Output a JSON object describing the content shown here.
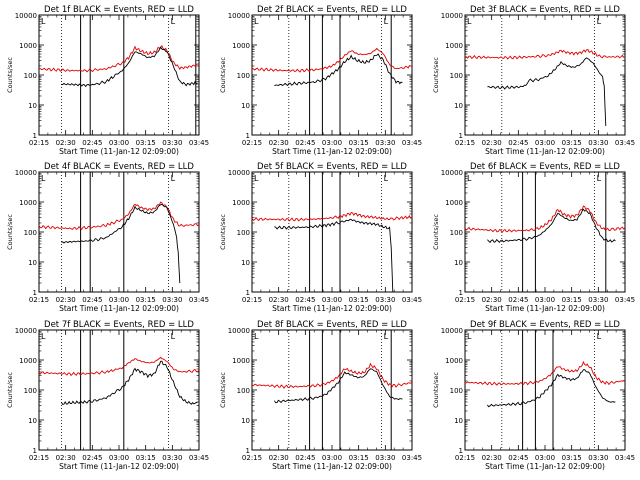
{
  "figure": {
    "x_ticks": [
      "02:15",
      "02:30",
      "02:45",
      "03:00",
      "03:15",
      "03:30",
      "03:45"
    ],
    "x_label": "Start Time (11-Jan-12 02:09:00)",
    "y_label": "Counts/sec",
    "y_ticks": [
      "1",
      "10",
      "100",
      "1000",
      "10000"
    ],
    "colors": {
      "events": "#000000",
      "lld": "#e00000"
    },
    "corner_marks": [
      "L",
      "L"
    ]
  },
  "chart_data": [
    {
      "type": "line",
      "title": "Det 1f BLACK = Events, RED = LLD",
      "xlim_minutes": [
        0,
        100
      ],
      "ylim": [
        1,
        10000
      ],
      "y_scale": "log",
      "solid_markers": [
        26,
        32,
        53,
        98
      ],
      "dotted_markers": [
        14,
        81
      ],
      "series": [
        {
          "name": "Events",
          "color": "#000000",
          "x": [
            14,
            22,
            30,
            36,
            42,
            46,
            52,
            56,
            60,
            64,
            68,
            72,
            76,
            80,
            84,
            88,
            92,
            96,
            99
          ],
          "y": [
            50,
            48,
            45,
            50,
            60,
            85,
            140,
            250,
            600,
            500,
            380,
            420,
            800,
            600,
            200,
            60,
            48,
            52,
            55
          ]
        },
        {
          "name": "LLD",
          "color": "#e00000",
          "x": [
            0,
            10,
            20,
            30,
            36,
            42,
            46,
            52,
            56,
            60,
            64,
            68,
            72,
            76,
            80,
            84,
            88,
            92,
            96,
            100
          ],
          "y": [
            160,
            150,
            140,
            140,
            150,
            160,
            190,
            250,
            380,
            800,
            620,
            520,
            560,
            900,
            650,
            260,
            170,
            180,
            200,
            230
          ]
        }
      ]
    },
    {
      "type": "line",
      "title": "Det 2f BLACK = Events, RED = LLD",
      "xlim_minutes": [
        0,
        100
      ],
      "ylim": [
        1,
        10000
      ],
      "y_scale": "log",
      "solid_markers": [
        36,
        44,
        55,
        87
      ],
      "dotted_markers": [
        23,
        81
      ],
      "series": [
        {
          "name": "Events",
          "color": "#000000",
          "x": [
            14,
            24,
            34,
            40,
            46,
            50,
            54,
            58,
            62,
            66,
            70,
            74,
            78,
            82,
            86,
            90,
            94
          ],
          "y": [
            45,
            50,
            55,
            60,
            75,
            110,
            160,
            280,
            400,
            300,
            260,
            300,
            500,
            320,
            110,
            60,
            55
          ]
        },
        {
          "name": "LLD",
          "color": "#e00000",
          "x": [
            0,
            10,
            20,
            30,
            40,
            46,
            50,
            54,
            58,
            62,
            66,
            70,
            74,
            78,
            82,
            86,
            90,
            96,
            100
          ],
          "y": [
            160,
            150,
            140,
            140,
            150,
            170,
            200,
            280,
            450,
            650,
            500,
            480,
            520,
            750,
            520,
            220,
            160,
            180,
            200
          ]
        }
      ]
    },
    {
      "type": "line",
      "title": "Det 3f BLACK = Events, RED = LLD",
      "xlim_minutes": [
        0,
        100
      ],
      "ylim": [
        1,
        10000
      ],
      "y_scale": "log",
      "solid_markers": [],
      "dotted_markers": [
        23,
        81
      ],
      "series": [
        {
          "name": "Events",
          "color": "#000000",
          "x": [
            14,
            24,
            34,
            38,
            40,
            46,
            52,
            56,
            60,
            64,
            68,
            72,
            76,
            80,
            84,
            86,
            87,
            88
          ],
          "y": [
            40,
            38,
            40,
            45,
            65,
            70,
            95,
            150,
            260,
            200,
            180,
            220,
            380,
            250,
            120,
            80,
            40,
            2
          ]
        },
        {
          "name": "LLD",
          "color": "#e00000",
          "x": [
            0,
            10,
            20,
            30,
            40,
            46,
            52,
            56,
            60,
            64,
            68,
            72,
            76,
            80,
            84,
            90,
            100
          ],
          "y": [
            400,
            390,
            380,
            380,
            400,
            420,
            450,
            520,
            650,
            560,
            520,
            550,
            680,
            550,
            420,
            400,
            410
          ]
        }
      ]
    },
    {
      "type": "line",
      "title": "Det 4f BLACK = Events, RED = LLD",
      "xlim_minutes": [
        0,
        100
      ],
      "ylim": [
        1,
        10000
      ],
      "y_scale": "log",
      "solid_markers": [
        26,
        32,
        53
      ],
      "dotted_markers": [
        14,
        81
      ],
      "series": [
        {
          "name": "Events",
          "color": "#000000",
          "x": [
            14,
            22,
            30,
            36,
            42,
            46,
            52,
            56,
            60,
            64,
            68,
            72,
            76,
            80,
            84,
            86,
            87,
            88
          ],
          "y": [
            45,
            48,
            50,
            55,
            65,
            90,
            150,
            280,
            650,
            520,
            420,
            460,
            850,
            650,
            180,
            60,
            20,
            2
          ]
        },
        {
          "name": "LLD",
          "color": "#e00000",
          "x": [
            0,
            10,
            20,
            30,
            36,
            42,
            46,
            52,
            56,
            60,
            64,
            68,
            72,
            76,
            80,
            84,
            88,
            94,
            100
          ],
          "y": [
            150,
            140,
            130,
            140,
            150,
            170,
            200,
            260,
            400,
            850,
            640,
            560,
            600,
            950,
            680,
            260,
            160,
            170,
            180
          ]
        }
      ]
    },
    {
      "type": "line",
      "title": "Det 5f BLACK = Events, RED = LLD",
      "xlim_minutes": [
        0,
        100
      ],
      "ylim": [
        1,
        10000
      ],
      "y_scale": "log",
      "solid_markers": [
        36,
        44,
        55
      ],
      "dotted_markers": [
        23,
        81
      ],
      "series": [
        {
          "name": "Events",
          "color": "#000000",
          "x": [
            14,
            24,
            34,
            44,
            52,
            58,
            62,
            66,
            70,
            74,
            78,
            82,
            86,
            87,
            88
          ],
          "y": [
            140,
            140,
            145,
            160,
            190,
            230,
            260,
            220,
            200,
            190,
            180,
            150,
            130,
            30,
            1
          ]
        },
        {
          "name": "LLD",
          "color": "#e00000",
          "x": [
            0,
            10,
            20,
            30,
            40,
            48,
            54,
            58,
            62,
            66,
            70,
            74,
            78,
            82,
            86,
            92,
            100
          ],
          "y": [
            270,
            265,
            260,
            260,
            270,
            290,
            320,
            360,
            420,
            380,
            330,
            320,
            300,
            280,
            270,
            290,
            320
          ]
        }
      ]
    },
    {
      "type": "line",
      "title": "Det 6f BLACK = Events, RED = LLD",
      "xlim_minutes": [
        0,
        100
      ],
      "ylim": [
        1,
        10000
      ],
      "y_scale": "log",
      "solid_markers": [
        36,
        44,
        88
      ],
      "dotted_markers": [
        23,
        81
      ],
      "series": [
        {
          "name": "Events",
          "color": "#000000",
          "x": [
            14,
            24,
            34,
            40,
            46,
            50,
            54,
            58,
            62,
            66,
            70,
            74,
            78,
            82,
            86,
            90,
            94
          ],
          "y": [
            50,
            50,
            55,
            60,
            75,
            110,
            180,
            420,
            300,
            240,
            260,
            560,
            420,
            140,
            60,
            50,
            50
          ]
        },
        {
          "name": "LLD",
          "color": "#e00000",
          "x": [
            0,
            10,
            20,
            30,
            40,
            46,
            50,
            54,
            58,
            62,
            66,
            70,
            74,
            78,
            82,
            86,
            90,
            96,
            100
          ],
          "y": [
            130,
            120,
            110,
            110,
            115,
            130,
            170,
            260,
            560,
            380,
            330,
            360,
            700,
            520,
            200,
            130,
            120,
            130,
            140
          ]
        }
      ]
    },
    {
      "type": "line",
      "title": "Det 7f BLACK = Events, RED = LLD",
      "xlim_minutes": [
        0,
        100
      ],
      "ylim": [
        1,
        10000
      ],
      "y_scale": "log",
      "solid_markers": [
        26,
        32,
        53
      ],
      "dotted_markers": [
        14,
        81
      ],
      "series": [
        {
          "name": "Events",
          "color": "#000000",
          "x": [
            14,
            22,
            30,
            36,
            42,
            46,
            52,
            56,
            60,
            64,
            68,
            72,
            76,
            80,
            84,
            88,
            92,
            96,
            99
          ],
          "y": [
            35,
            38,
            40,
            45,
            55,
            75,
            120,
            220,
            500,
            400,
            300,
            340,
            900,
            600,
            180,
            60,
            40,
            35,
            38
          ]
        },
        {
          "name": "LLD",
          "color": "#e00000",
          "x": [
            0,
            10,
            20,
            30,
            36,
            42,
            46,
            52,
            56,
            60,
            64,
            68,
            72,
            76,
            80,
            84,
            88,
            94,
            100
          ],
          "y": [
            380,
            360,
            340,
            350,
            370,
            400,
            450,
            550,
            800,
            1100,
            900,
            800,
            850,
            1200,
            900,
            500,
            400,
            420,
            450
          ]
        }
      ]
    },
    {
      "type": "line",
      "title": "Det 8f BLACK = Events, RED = LLD",
      "xlim_minutes": [
        0,
        100
      ],
      "ylim": [
        1,
        10000
      ],
      "y_scale": "log",
      "solid_markers": [
        36,
        44,
        55,
        87
      ],
      "dotted_markers": [
        23,
        81
      ],
      "series": [
        {
          "name": "Events",
          "color": "#000000",
          "x": [
            14,
            24,
            34,
            40,
            46,
            50,
            54,
            58,
            62,
            66,
            70,
            74,
            78,
            82,
            86,
            90,
            94
          ],
          "y": [
            40,
            45,
            50,
            55,
            70,
            110,
            180,
            380,
            320,
            260,
            280,
            520,
            400,
            140,
            60,
            50,
            50
          ]
        },
        {
          "name": "LLD",
          "color": "#e00000",
          "x": [
            0,
            10,
            20,
            30,
            40,
            46,
            50,
            54,
            58,
            62,
            66,
            70,
            74,
            78,
            82,
            86,
            90,
            96,
            100
          ],
          "y": [
            150,
            140,
            130,
            130,
            140,
            160,
            200,
            280,
            520,
            420,
            360,
            380,
            680,
            520,
            220,
            150,
            140,
            160,
            180
          ]
        }
      ]
    },
    {
      "type": "line",
      "title": "Det 9f BLACK = Events, RED = LLD",
      "xlim_minutes": [
        0,
        100
      ],
      "ylim": [
        1,
        10000
      ],
      "y_scale": "log",
      "solid_markers": [
        36,
        44,
        55
      ],
      "dotted_markers": [
        23,
        81
      ],
      "series": [
        {
          "name": "Events",
          "color": "#000000",
          "x": [
            14,
            24,
            34,
            40,
            46,
            50,
            54,
            58,
            62,
            66,
            70,
            74,
            78,
            82,
            86,
            90,
            94
          ],
          "y": [
            30,
            32,
            35,
            40,
            55,
            90,
            150,
            320,
            260,
            220,
            240,
            480,
            360,
            120,
            55,
            40,
            40
          ]
        },
        {
          "name": "LLD",
          "color": "#e00000",
          "x": [
            0,
            10,
            20,
            30,
            40,
            46,
            50,
            54,
            58,
            62,
            66,
            70,
            74,
            78,
            82,
            86,
            90,
            96,
            100
          ],
          "y": [
            180,
            170,
            160,
            160,
            170,
            190,
            240,
            340,
            620,
            480,
            420,
            440,
            780,
            600,
            260,
            180,
            170,
            190,
            210
          ]
        }
      ]
    }
  ]
}
